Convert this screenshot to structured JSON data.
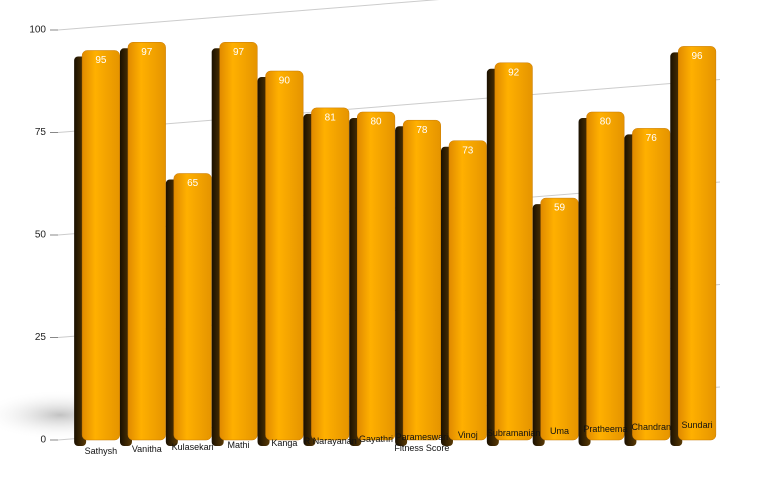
{
  "chart_data": {
    "type": "bar",
    "categories": [
      "Sathysh",
      "Vanitha",
      "Kulasekari",
      "Mathi",
      "Kanga",
      "R Narayanan",
      "Gayathri",
      "Parameswari Fitness Score",
      "Vinoj",
      "Subramanian",
      "Uma",
      "Pratheema",
      "Chandran",
      "Sundari"
    ],
    "values": [
      95,
      97,
      65,
      97,
      90,
      81,
      80,
      78,
      73,
      92,
      59,
      80,
      76,
      96
    ],
    "color": "#ffa500",
    "ylim": [
      0,
      100
    ],
    "yticks": [
      0,
      25,
      50,
      75,
      100
    ],
    "grid": true
  }
}
